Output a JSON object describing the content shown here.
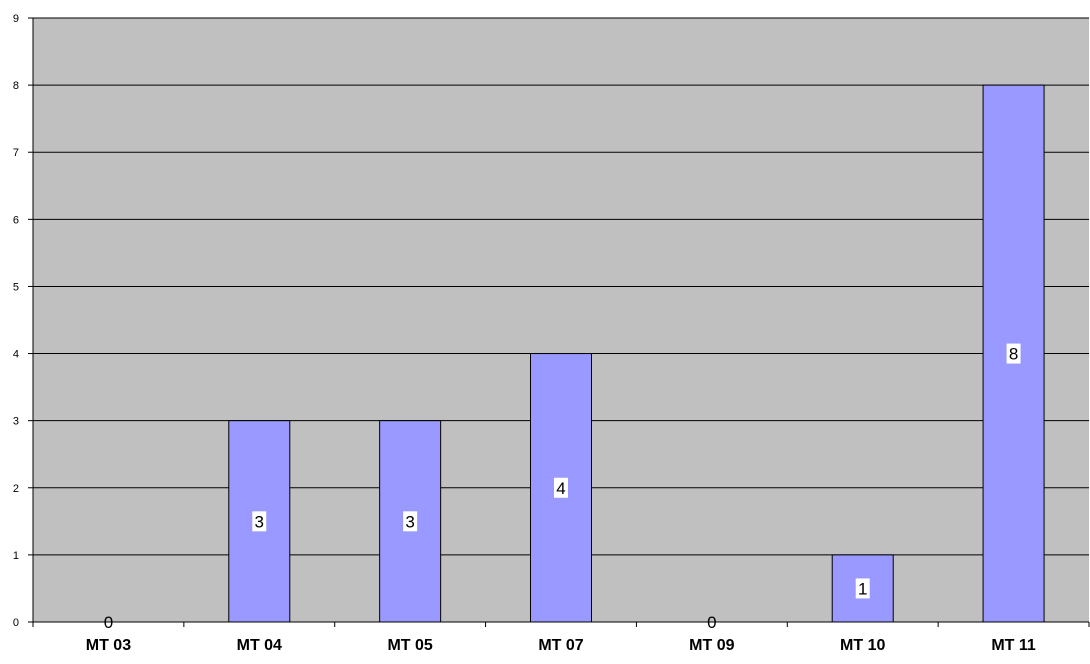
{
  "chart_data": {
    "type": "bar",
    "categories": [
      "MT 03",
      "MT 04",
      "MT 05",
      "MT 07",
      "MT 09",
      "MT 10",
      "MT 11"
    ],
    "values": [
      0,
      3,
      3,
      4,
      0,
      1,
      8
    ],
    "title": "",
    "xlabel": "",
    "ylabel": "",
    "ylim": [
      0,
      9
    ],
    "yticks": [
      "0",
      "1",
      "2",
      "3",
      "4",
      "5",
      "6",
      "7",
      "8",
      "9"
    ],
    "grid": true,
    "legend": "none",
    "data_labels": [
      "0",
      "3",
      "3",
      "4",
      "0",
      "1",
      "8"
    ],
    "colors": {
      "plot_background": "#c0c0c0",
      "bar_fill": "#9999ff",
      "bar_stroke": "#000000",
      "gridline": "#000000"
    }
  }
}
